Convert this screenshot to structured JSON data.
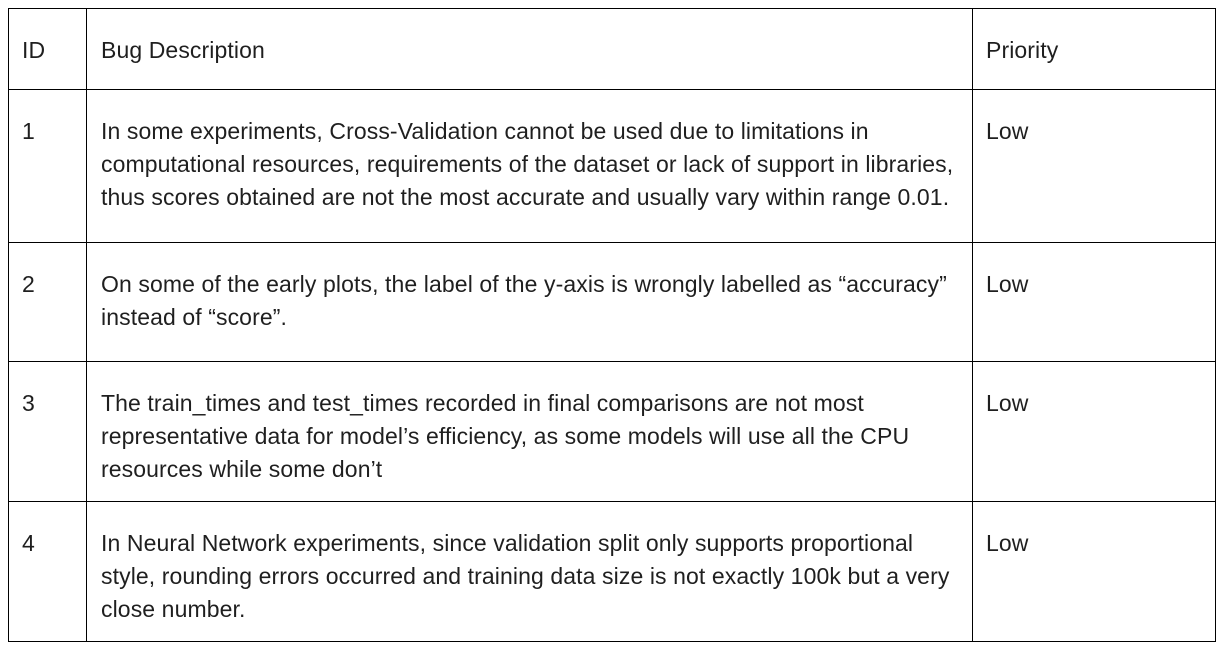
{
  "table": {
    "headers": {
      "id": "ID",
      "description": "Bug Description",
      "priority": "Priority"
    },
    "rows": [
      {
        "id": "1",
        "description": "In some experiments, Cross-Validation cannot be used due to limitations in computational resources, requirements of the dataset or lack of support in libraries, thus scores obtained are not the most accurate and usually vary within range 0.01.",
        "priority": "Low"
      },
      {
        "id": "2",
        "description": "On some of the early plots, the label of the y-axis is wrongly labelled as “accuracy” instead of “score”.",
        "priority": "Low"
      },
      {
        "id": "3",
        "description": "The train_times and test_times recorded in final comparisons are not most representative data for model’s efficiency, as some models will use all the CPU resources while some don’t",
        "priority": "Low"
      },
      {
        "id": "4",
        "description": "In Neural Network experiments, since validation split only supports proportional style, rounding errors occurred and training data size is not exactly 100k but a very close number.",
        "priority": "Low"
      }
    ]
  }
}
